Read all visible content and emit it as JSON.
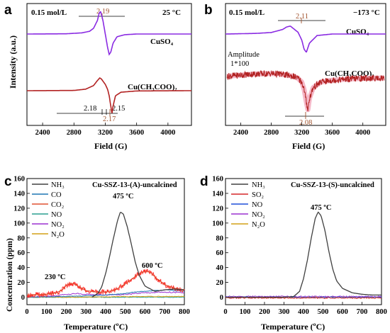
{
  "figure": {
    "panel_a": {
      "label": "a",
      "concentration": "0.15 mol/L",
      "temperature": "25 °C",
      "xlabel": "Field (G)",
      "ylabel": "Intensity (a.u.)",
      "xticks": [
        "2400",
        "2800",
        "3200",
        "3600",
        "4000"
      ],
      "series_top": "CuSO₄",
      "series_bottom": "Cu(CH₃COO)₂",
      "g_top": "2.19",
      "g_bottom_left": "2.18",
      "g_bottom_mid": "2.17",
      "g_bottom_right": "2.15"
    },
    "panel_b": {
      "label": "b",
      "concentration": "0.15 mol/L",
      "temperature": "−173 °C",
      "xlabel": "Field (G)",
      "xticks": [
        "2400",
        "2800",
        "3200",
        "3600",
        "4000"
      ],
      "series_top": "CuSO₄",
      "series_bottom": "Cu(CH₃COO)₂",
      "amplitude_label": "Amplitude",
      "amplitude_value": "1*100",
      "g_top": "2.11",
      "g_bottom": "2.08"
    },
    "panel_c": {
      "label": "c",
      "title": "Cu-SSZ-13-(A)-uncalcined",
      "xlabel": "Temperature (ºC)",
      "ylabel": "Concentration (ppm)",
      "xticks": [
        "0",
        "100",
        "200",
        "300",
        "400",
        "500",
        "600",
        "700",
        "800"
      ],
      "yticks": [
        "0",
        "20",
        "40",
        "60",
        "80",
        "100",
        "120",
        "140",
        "160"
      ],
      "legend": [
        "NH₃",
        "CO",
        "CO₂",
        "NO",
        "NO₂",
        "N₂O"
      ],
      "ann_peak1": "475 ºC",
      "ann_peak2": "230 ºC",
      "ann_peak3": "600 ºC"
    },
    "panel_d": {
      "label": "d",
      "title": "Cu-SSZ-13-(S)-uncalcined",
      "xlabel": "Temperature (ºC)",
      "xticks": [
        "0",
        "100",
        "200",
        "300",
        "400",
        "500",
        "600",
        "700",
        "800"
      ],
      "yticks": [
        "0",
        "20",
        "40",
        "60",
        "80",
        "100",
        "120",
        "140",
        "160"
      ],
      "legend": [
        "NH₃",
        "SO₂",
        "NO",
        "NO₂",
        "N₂O"
      ],
      "ann_peak1": "475 ºC"
    }
  },
  "colors": {
    "CuSO4": "#8a2be2",
    "CuAc": "#b22222",
    "NH3": "#404040",
    "CO": "#1f77b4",
    "CO2": "#e05030",
    "NO": "#2a9d8f",
    "NO2": "#9b30d0",
    "N2O": "#d4a017",
    "SO2": "#d62728",
    "NO_d": "#1f4fd8",
    "annotation": "#a0522d"
  },
  "chart_data": [
    {
      "type": "line",
      "panel": "a",
      "title": "",
      "xlabel": "Field (G)",
      "ylabel": "Intensity (a.u.)",
      "xlim": [
        2200,
        4300
      ],
      "y_units": "arbitrary",
      "series": [
        {
          "name": "CuSO4",
          "x": [
            2200,
            2700,
            2900,
            3000,
            3050,
            3100,
            3120,
            3140,
            3170,
            3200,
            3230,
            3250,
            3270,
            3300,
            3350,
            3450,
            3600,
            4300
          ],
          "y": [
            0,
            0.1,
            0.5,
            1.2,
            2.5,
            6,
            9,
            10,
            6,
            0,
            -6,
            -9,
            -8,
            -4,
            -1.2,
            -0.3,
            0,
            0
          ]
        },
        {
          "name": "Cu(CH3COO)2",
          "x": [
            2200,
            2800,
            2950,
            3050,
            3100,
            3130,
            3150,
            3200,
            3230,
            3250,
            3270,
            3285,
            3300,
            3330,
            3400,
            3600,
            4300
          ],
          "y": [
            0,
            0.1,
            0.6,
            2,
            4,
            5,
            4.6,
            2.5,
            0.5,
            -2,
            -6,
            -9,
            -6,
            -2,
            -0.6,
            -0.1,
            0
          ]
        }
      ],
      "annotations": [
        "2.19",
        "2.18",
        "2.17",
        "2.15"
      ]
    },
    {
      "type": "line",
      "panel": "b",
      "title": "",
      "xlabel": "Field (G)",
      "ylabel": "",
      "xlim": [
        2200,
        4300
      ],
      "series": [
        {
          "name": "CuSO4",
          "x": [
            2200,
            2600,
            2800,
            2950,
            3000,
            3050,
            3100,
            3150,
            3200,
            3230,
            3260,
            3300,
            3400,
            3600,
            4300
          ],
          "y": [
            0,
            0.2,
            0.5,
            1.5,
            2.3,
            2.6,
            1.6,
            0.6,
            -2,
            -5,
            -6,
            -3,
            -0.5,
            0,
            0
          ]
        },
        {
          "name": "Cu(CH3COO)2 (Amplitude 1*100)",
          "x": [
            2200,
            2400,
            2600,
            2800,
            2900,
            3000,
            3100,
            3150,
            3200,
            3230,
            3260,
            3280,
            3300,
            3350,
            3450,
            3600,
            3800,
            4000,
            4300
          ],
          "y": [
            0,
            0.4,
            0.7,
            0.8,
            0.7,
            0.4,
            0,
            -0.5,
            -1.5,
            -3.5,
            -7,
            -9,
            -6,
            -3,
            -1.5,
            -1,
            -0.7,
            -0.5,
            -0.4
          ]
        }
      ],
      "annotations": [
        "2.11",
        "2.08"
      ]
    },
    {
      "type": "line",
      "panel": "c",
      "title": "Cu-SSZ-13-(A)-uncalcined",
      "xlabel": "Temperature (ºC)",
      "ylabel": "Concentration (ppm)",
      "xlim": [
        0,
        800
      ],
      "ylim": [
        -10,
        160
      ],
      "series": [
        {
          "name": "NH3",
          "x": [
            330,
            360,
            380,
            400,
            420,
            440,
            460,
            475,
            490,
            510,
            530,
            550,
            570,
            600,
            650,
            700,
            750,
            800
          ],
          "y": [
            0,
            5,
            14,
            32,
            55,
            80,
            103,
            115,
            112,
            95,
            72,
            48,
            30,
            15,
            8,
            10,
            11,
            10
          ]
        },
        {
          "name": "CO",
          "x": [
            0,
            200,
            300,
            400,
            500,
            550,
            600,
            650,
            700,
            750,
            800
          ],
          "y": [
            0,
            1,
            2,
            3,
            5,
            7,
            8,
            9,
            10,
            9,
            8
          ]
        },
        {
          "name": "CO2",
          "x": [
            0,
            100,
            150,
            180,
            200,
            220,
            240,
            260,
            280,
            300,
            350,
            400,
            450,
            500,
            530,
            560,
            590,
            610,
            630,
            660,
            700,
            750,
            800
          ],
          "y": [
            3,
            4,
            6,
            10,
            16,
            19,
            18,
            15,
            12,
            9,
            7,
            7,
            10,
            18,
            24,
            30,
            34,
            35,
            33,
            25,
            17,
            12,
            10
          ]
        },
        {
          "name": "NO",
          "x": [
            0,
            200,
            400,
            600,
            800
          ],
          "y": [
            0,
            0,
            0,
            0,
            0
          ]
        },
        {
          "name": "NO2",
          "x": [
            0,
            150,
            200,
            250,
            300,
            400,
            500,
            600,
            700,
            800
          ],
          "y": [
            0,
            2,
            4,
            5,
            4,
            3,
            4,
            6,
            7,
            6
          ]
        },
        {
          "name": "N2O",
          "x": [
            0,
            200,
            400,
            600,
            800
          ],
          "y": [
            0,
            0,
            0.5,
            1,
            1
          ]
        }
      ],
      "annotations": [
        "475 ºC",
        "230 ºC",
        "600 ºC"
      ]
    },
    {
      "type": "line",
      "panel": "d",
      "title": "Cu-SSZ-13-(S)-uncalcined",
      "xlabel": "Temperature (ºC)",
      "ylabel": "",
      "xlim": [
        0,
        800
      ],
      "ylim": [
        -10,
        160
      ],
      "series": [
        {
          "name": "NH3",
          "x": [
            0,
            300,
            350,
            380,
            400,
            420,
            440,
            460,
            475,
            490,
            510,
            530,
            550,
            570,
            600,
            650,
            700,
            750,
            800
          ],
          "y": [
            0,
            0,
            1,
            8,
            25,
            50,
            80,
            106,
            115,
            110,
            90,
            62,
            38,
            22,
            12,
            6,
            4,
            3,
            3
          ]
        },
        {
          "name": "SO2",
          "x": [
            0,
            200,
            400,
            600,
            800
          ],
          "y": [
            -1,
            -1,
            -1,
            -1,
            -1
          ]
        },
        {
          "name": "NO",
          "x": [
            0,
            200,
            400,
            600,
            800
          ],
          "y": [
            0,
            0,
            0,
            0,
            0
          ]
        },
        {
          "name": "NO2",
          "x": [
            0,
            200,
            400,
            600,
            800
          ],
          "y": [
            1,
            1,
            1,
            1,
            1
          ]
        },
        {
          "name": "N2O",
          "x": [
            0,
            200,
            400,
            600,
            800
          ],
          "y": [
            0,
            0,
            0,
            0,
            0
          ]
        }
      ],
      "annotations": [
        "475 ºC"
      ]
    }
  ]
}
